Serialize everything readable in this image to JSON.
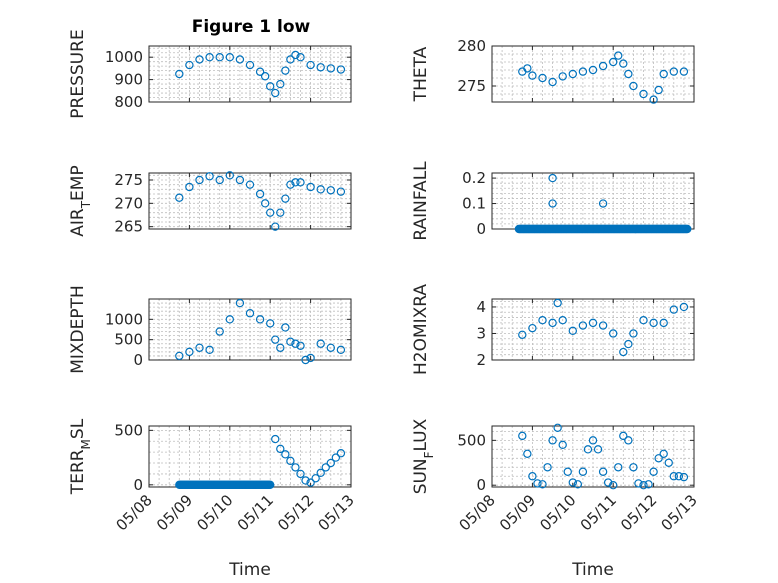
{
  "figure": {
    "title": "Figure 1 low",
    "marker_color": "#0072bd"
  },
  "chart_data": [
    {
      "type": "scatter",
      "ylabel": "PRESSURE",
      "ylim": [
        800,
        1050
      ],
      "yticks": [
        800,
        900,
        1000
      ],
      "yticklabels": [
        "800",
        "900",
        "1000"
      ],
      "xlim": [
        "05/08",
        "05/13"
      ],
      "xticks": [
        "05/08",
        "05/09",
        "05/10",
        "05/11",
        "05/12",
        "05/13"
      ],
      "grid": true,
      "minor_grid": true,
      "x": [
        "05/08 18:00",
        "05/09 00:00",
        "05/09 06:00",
        "05/09 12:00",
        "05/09 18:00",
        "05/10 00:00",
        "05/10 06:00",
        "05/10 12:00",
        "05/10 18:00",
        "05/10 21:00",
        "05/11 00:00",
        "05/11 03:00",
        "05/11 06:00",
        "05/11 09:00",
        "05/11 12:00",
        "05/11 15:00",
        "05/11 18:00",
        "05/12 00:00",
        "05/12 06:00",
        "05/12 12:00",
        "05/12 18:00"
      ],
      "y": [
        925,
        965,
        990,
        1000,
        1000,
        1000,
        990,
        965,
        935,
        915,
        870,
        840,
        880,
        940,
        990,
        1010,
        1000,
        965,
        955,
        950,
        945
      ]
    },
    {
      "type": "scatter",
      "ylabel": "THETA",
      "ylim": [
        273,
        280
      ],
      "yticks": [
        275,
        280
      ],
      "yticklabels": [
        "275",
        "280"
      ],
      "xlim": [
        "05/08",
        "05/13"
      ],
      "xticks": [
        "05/08",
        "05/09",
        "05/10",
        "05/11",
        "05/12",
        "05/13"
      ],
      "grid": true,
      "minor_grid": true,
      "x": [
        "05/08 18:00",
        "05/08 21:00",
        "05/09 00:00",
        "05/09 06:00",
        "05/09 12:00",
        "05/09 18:00",
        "05/10 00:00",
        "05/10 06:00",
        "05/10 12:00",
        "05/10 18:00",
        "05/11 00:00",
        "05/11 03:00",
        "05/11 06:00",
        "05/11 09:00",
        "05/11 12:00",
        "05/11 18:00",
        "05/12 00:00",
        "05/12 03:00",
        "05/12 06:00",
        "05/12 12:00",
        "05/12 18:00"
      ],
      "y": [
        276.8,
        277.2,
        276.3,
        276.0,
        275.5,
        276.2,
        276.5,
        276.8,
        277.0,
        277.5,
        278.0,
        278.8,
        277.8,
        276.5,
        275.0,
        274.0,
        273.3,
        274.5,
        276.5,
        276.8,
        276.8
      ]
    },
    {
      "type": "scatter",
      "ylabel": "AIR_TEMP",
      "ylim": [
        264.5,
        276.5
      ],
      "yticks": [
        265,
        270,
        275
      ],
      "yticklabels": [
        "265",
        "270",
        "275"
      ],
      "xlim": [
        "05/08",
        "05/13"
      ],
      "xticks": [
        "05/08",
        "05/09",
        "05/10",
        "05/11",
        "05/12",
        "05/13"
      ],
      "grid": true,
      "minor_grid": true,
      "x": [
        "05/08 18:00",
        "05/09 00:00",
        "05/09 06:00",
        "05/09 12:00",
        "05/09 18:00",
        "05/10 00:00",
        "05/10 06:00",
        "05/10 12:00",
        "05/10 18:00",
        "05/10 21:00",
        "05/11 00:00",
        "05/11 03:00",
        "05/11 06:00",
        "05/11 09:00",
        "05/11 12:00",
        "05/11 15:00",
        "05/11 18:00",
        "05/12 00:00",
        "05/12 06:00",
        "05/12 12:00",
        "05/12 18:00"
      ],
      "y": [
        271.2,
        273.5,
        275.0,
        275.8,
        275.0,
        276.0,
        275.0,
        274.0,
        272.0,
        270.0,
        268.0,
        265.0,
        268.0,
        271.0,
        274.0,
        274.5,
        274.5,
        273.5,
        273.0,
        272.8,
        272.5
      ]
    },
    {
      "type": "scatter",
      "ylabel": "RAINFALL",
      "ylim": [
        0,
        0.22
      ],
      "yticks": [
        0,
        0.1,
        0.2
      ],
      "yticklabels": [
        "0",
        "0.1",
        "0.2"
      ],
      "xlim": [
        "05/08",
        "05/13"
      ],
      "xticks": [
        "05/08",
        "05/09",
        "05/10",
        "05/11",
        "05/12",
        "05/13"
      ],
      "grid": true,
      "minor_grid": true,
      "baseline": {
        "from": "05/08 16:00",
        "to": "05/12 20:00",
        "value": 0
      },
      "x": [
        "05/09 12:00",
        "05/09 12:00",
        "05/10 18:00"
      ],
      "y": [
        0.2,
        0.1,
        0.1
      ]
    },
    {
      "type": "scatter",
      "ylabel": "MIXDEPTH",
      "ylim": [
        0,
        1500
      ],
      "yticks": [
        0,
        500,
        1000
      ],
      "yticklabels": [
        "0",
        "500",
        "1000"
      ],
      "xlim": [
        "05/08",
        "05/13"
      ],
      "xticks": [
        "05/08",
        "05/09",
        "05/10",
        "05/11",
        "05/12",
        "05/13"
      ],
      "grid": true,
      "minor_grid": true,
      "x": [
        "05/08 18:00",
        "05/09 00:00",
        "05/09 06:00",
        "05/09 12:00",
        "05/09 18:00",
        "05/10 00:00",
        "05/10 06:00",
        "05/10 12:00",
        "05/10 18:00",
        "05/11 00:00",
        "05/11 03:00",
        "05/11 06:00",
        "05/11 09:00",
        "05/11 12:00",
        "05/11 15:00",
        "05/11 18:00",
        "05/11 21:00",
        "05/12 00:00",
        "05/12 06:00",
        "05/12 12:00",
        "05/12 18:00"
      ],
      "y": [
        100,
        200,
        300,
        250,
        700,
        1000,
        1400,
        1150,
        1000,
        900,
        500,
        300,
        800,
        450,
        400,
        350,
        0,
        50,
        400,
        300,
        250
      ]
    },
    {
      "type": "scatter",
      "ylabel": "H2OMIXRA",
      "ylim": [
        2,
        4.3
      ],
      "yticks": [
        2,
        3,
        4
      ],
      "yticklabels": [
        "2",
        "3",
        "4"
      ],
      "xlim": [
        "05/08",
        "05/13"
      ],
      "xticks": [
        "05/08",
        "05/09",
        "05/10",
        "05/11",
        "05/12",
        "05/13"
      ],
      "grid": true,
      "minor_grid": true,
      "x": [
        "05/08 18:00",
        "05/09 00:00",
        "05/09 06:00",
        "05/09 12:00",
        "05/09 15:00",
        "05/09 18:00",
        "05/10 00:00",
        "05/10 06:00",
        "05/10 12:00",
        "05/10 18:00",
        "05/11 00:00",
        "05/11 06:00",
        "05/11 09:00",
        "05/11 12:00",
        "05/11 18:00",
        "05/12 00:00",
        "05/12 06:00",
        "05/12 12:00",
        "05/12 18:00"
      ],
      "y": [
        2.95,
        3.2,
        3.5,
        3.4,
        4.15,
        3.5,
        3.1,
        3.3,
        3.4,
        3.3,
        3.0,
        2.3,
        2.6,
        3.0,
        3.5,
        3.4,
        3.4,
        3.9,
        4.0
      ]
    },
    {
      "type": "scatter",
      "ylabel": "TERR_MSL",
      "ylim": [
        -20,
        540
      ],
      "yticks": [
        0,
        500
      ],
      "yticklabels": [
        "0",
        "500"
      ],
      "xlim": [
        "05/08",
        "05/13"
      ],
      "xticks": [
        "05/08",
        "05/09",
        "05/10",
        "05/11",
        "05/12",
        "05/13"
      ],
      "xticklabels": [
        "05/08",
        "05/09",
        "05/10",
        "05/11",
        "05/12",
        "05/13"
      ],
      "xlabel": "Time",
      "grid": true,
      "minor_grid": true,
      "baseline": {
        "from": "05/08 18:00",
        "to": "05/11 00:00",
        "value": 0
      },
      "x": [
        "05/11 03:00",
        "05/11 06:00",
        "05/11 09:00",
        "05/11 12:00",
        "05/11 15:00",
        "05/11 18:00",
        "05/11 21:00",
        "05/12 00:00",
        "05/12 03:00",
        "05/12 06:00",
        "05/12 09:00",
        "05/12 12:00",
        "05/12 15:00",
        "05/12 18:00"
      ],
      "y": [
        420,
        330,
        280,
        220,
        160,
        100,
        40,
        20,
        60,
        110,
        160,
        200,
        250,
        290
      ]
    },
    {
      "type": "scatter",
      "ylabel": "SUN_FLUX",
      "ylim": [
        -20,
        660
      ],
      "yticks": [
        0,
        500
      ],
      "yticklabels": [
        "0",
        "500"
      ],
      "xlim": [
        "05/08",
        "05/13"
      ],
      "xticks": [
        "05/08",
        "05/09",
        "05/10",
        "05/11",
        "05/12",
        "05/13"
      ],
      "xticklabels": [
        "05/08",
        "05/09",
        "05/10",
        "05/11",
        "05/12",
        "05/13"
      ],
      "xlabel": "Time",
      "grid": true,
      "minor_grid": true,
      "x": [
        "05/08 18:00",
        "05/08 21:00",
        "05/09 00:00",
        "05/09 03:00",
        "05/09 06:00",
        "05/09 09:00",
        "05/09 12:00",
        "05/09 15:00",
        "05/09 18:00",
        "05/09 21:00",
        "05/10 00:00",
        "05/10 03:00",
        "05/10 06:00",
        "05/10 09:00",
        "05/10 12:00",
        "05/10 15:00",
        "05/10 18:00",
        "05/10 21:00",
        "05/11 00:00",
        "05/11 03:00",
        "05/11 06:00",
        "05/11 09:00",
        "05/11 12:00",
        "05/11 15:00",
        "05/11 18:00",
        "05/11 21:00",
        "05/12 00:00",
        "05/12 03:00",
        "05/12 06:00",
        "05/12 09:00",
        "05/12 12:00",
        "05/12 15:00",
        "05/12 18:00"
      ],
      "y": [
        550,
        350,
        100,
        20,
        10,
        200,
        500,
        640,
        450,
        150,
        30,
        10,
        150,
        400,
        500,
        400,
        150,
        30,
        0,
        200,
        550,
        500,
        200,
        20,
        0,
        10,
        150,
        300,
        350,
        250,
        100,
        100,
        90
      ]
    }
  ]
}
